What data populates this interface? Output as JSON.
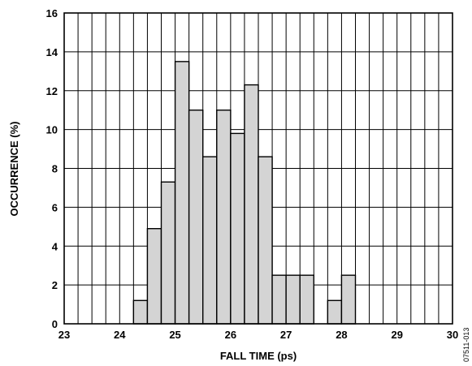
{
  "chart_data": {
    "type": "bar",
    "title": "",
    "xlabel": "FALL TIME (ps)",
    "ylabel": "OCCURRENCE (%)",
    "xlim": [
      23,
      30
    ],
    "ylim": [
      0,
      16
    ],
    "xticks": [
      "23",
      "24",
      "25",
      "26",
      "27",
      "28",
      "29",
      "30"
    ],
    "yticks": [
      "0",
      "2",
      "4",
      "6",
      "8",
      "10",
      "12",
      "14",
      "16"
    ],
    "grid": true,
    "bin_width": 0.25,
    "bins": [
      {
        "start": 24.25,
        "value": 1.2
      },
      {
        "start": 24.5,
        "value": 4.9
      },
      {
        "start": 24.75,
        "value": 7.3
      },
      {
        "start": 25.0,
        "value": 13.5
      },
      {
        "start": 25.25,
        "value": 11.0
      },
      {
        "start": 25.5,
        "value": 8.6
      },
      {
        "start": 25.75,
        "value": 11.0
      },
      {
        "start": 26.0,
        "value": 9.8
      },
      {
        "start": 26.25,
        "value": 12.3
      },
      {
        "start": 26.5,
        "value": 8.6
      },
      {
        "start": 26.75,
        "value": 2.5
      },
      {
        "start": 27.0,
        "value": 2.5
      },
      {
        "start": 27.25,
        "value": 2.5
      },
      {
        "start": 27.75,
        "value": 1.2
      },
      {
        "start": 28.0,
        "value": 2.5
      }
    ],
    "bar_fill": "#d4d4d4",
    "bar_stroke": "#000000"
  },
  "figure_code": "07511-013"
}
